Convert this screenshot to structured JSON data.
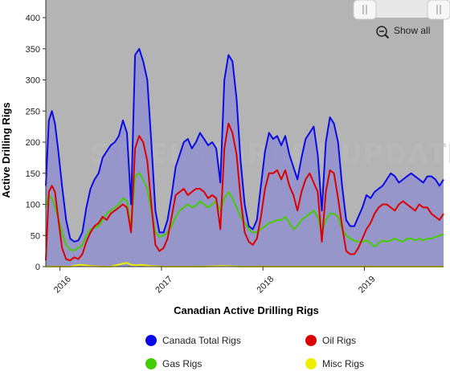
{
  "chart_data": {
    "type": "line",
    "title": "",
    "xlabel": "Canadian Active Drilling Rigs",
    "ylabel": "Active Drilling Rigs",
    "ylim": [
      0,
      400
    ],
    "yticks": [
      0,
      50,
      100,
      150,
      200,
      250,
      300,
      350,
      400
    ],
    "xlim": [
      2015.86,
      2019.78
    ],
    "xtick_labels": [
      "2016",
      "2017",
      "2018",
      "2019"
    ],
    "xtick_values": [
      2016,
      2017,
      2018,
      2019
    ],
    "grid": false,
    "legend_position": "bottom",
    "watermark": "STEEL MARKET UPDATE",
    "show_all_label": "Show all",
    "series": [
      {
        "name": "Canada Total Rigs",
        "color": "#0a0ae6",
        "fill": "#8c8cd2",
        "x": [
          2015.86,
          2015.89,
          2015.92,
          2015.95,
          2015.98,
          2016.02,
          2016.06,
          2016.1,
          2016.14,
          2016.18,
          2016.22,
          2016.26,
          2016.3,
          2016.34,
          2016.38,
          2016.42,
          2016.46,
          2016.5,
          2016.54,
          2016.58,
          2016.62,
          2016.66,
          2016.7,
          2016.74,
          2016.78,
          2016.82,
          2016.86,
          2016.9,
          2016.94,
          2016.98,
          2017.02,
          2017.06,
          2017.1,
          2017.14,
          2017.18,
          2017.22,
          2017.26,
          2017.3,
          2017.34,
          2017.38,
          2017.42,
          2017.46,
          2017.5,
          2017.54,
          2017.58,
          2017.62,
          2017.66,
          2017.7,
          2017.74,
          2017.78,
          2017.82,
          2017.86,
          2017.9,
          2017.94,
          2017.98,
          2018.02,
          2018.06,
          2018.1,
          2018.14,
          2018.18,
          2018.22,
          2018.26,
          2018.3,
          2018.34,
          2018.38,
          2018.42,
          2018.46,
          2018.5,
          2018.54,
          2018.58,
          2018.62,
          2018.66,
          2018.7,
          2018.74,
          2018.78,
          2018.82,
          2018.86,
          2018.9,
          2018.94,
          2018.98,
          2019.02,
          2019.06,
          2019.1,
          2019.14,
          2019.18,
          2019.22,
          2019.26,
          2019.3,
          2019.34,
          2019.38,
          2019.42,
          2019.46,
          2019.5,
          2019.54,
          2019.58,
          2019.62,
          2019.66,
          2019.7,
          2019.74,
          2019.78
        ],
        "values": [
          130,
          235,
          250,
          230,
          190,
          130,
          75,
          45,
          40,
          42,
          55,
          95,
          125,
          140,
          150,
          175,
          185,
          195,
          200,
          210,
          235,
          215,
          100,
          340,
          350,
          330,
          300,
          200,
          90,
          55,
          55,
          75,
          115,
          160,
          180,
          200,
          205,
          190,
          200,
          215,
          205,
          195,
          200,
          190,
          135,
          300,
          340,
          330,
          270,
          170,
          100,
          65,
          60,
          75,
          130,
          185,
          215,
          205,
          210,
          195,
          210,
          180,
          160,
          140,
          175,
          205,
          215,
          225,
          180,
          90,
          200,
          240,
          230,
          200,
          130,
          75,
          65,
          65,
          80,
          95,
          115,
          110,
          120,
          125,
          130,
          140,
          150,
          145,
          135,
          140,
          145,
          150,
          145,
          140,
          135,
          145,
          145,
          140,
          130,
          140
        ]
      },
      {
        "name": "Oil Rigs",
        "color": "#dd0000",
        "x": [
          2015.86,
          2015.89,
          2015.92,
          2015.95,
          2015.98,
          2016.02,
          2016.06,
          2016.1,
          2016.14,
          2016.18,
          2016.22,
          2016.26,
          2016.3,
          2016.34,
          2016.38,
          2016.42,
          2016.46,
          2016.5,
          2016.54,
          2016.58,
          2016.62,
          2016.66,
          2016.7,
          2016.74,
          2016.78,
          2016.82,
          2016.86,
          2016.9,
          2016.94,
          2016.98,
          2017.02,
          2017.06,
          2017.1,
          2017.14,
          2017.18,
          2017.22,
          2017.26,
          2017.3,
          2017.34,
          2017.38,
          2017.42,
          2017.46,
          2017.5,
          2017.54,
          2017.58,
          2017.62,
          2017.66,
          2017.7,
          2017.74,
          2017.78,
          2017.82,
          2017.86,
          2017.9,
          2017.94,
          2017.98,
          2018.02,
          2018.06,
          2018.1,
          2018.14,
          2018.18,
          2018.22,
          2018.26,
          2018.3,
          2018.34,
          2018.38,
          2018.42,
          2018.46,
          2018.5,
          2018.54,
          2018.58,
          2018.62,
          2018.66,
          2018.7,
          2018.74,
          2018.78,
          2018.82,
          2018.86,
          2018.9,
          2018.94,
          2018.98,
          2019.02,
          2019.06,
          2019.1,
          2019.14,
          2019.18,
          2019.22,
          2019.26,
          2019.3,
          2019.34,
          2019.38,
          2019.42,
          2019.46,
          2019.5,
          2019.54,
          2019.58,
          2019.62,
          2019.66,
          2019.7,
          2019.74,
          2019.78
        ],
        "values": [
          10,
          120,
          130,
          120,
          80,
          30,
          12,
          10,
          15,
          12,
          20,
          40,
          55,
          65,
          70,
          80,
          75,
          85,
          90,
          95,
          100,
          95,
          55,
          190,
          210,
          200,
          170,
          100,
          35,
          25,
          30,
          45,
          80,
          115,
          120,
          125,
          115,
          120,
          125,
          125,
          120,
          110,
          115,
          110,
          60,
          190,
          230,
          215,
          180,
          110,
          55,
          40,
          35,
          45,
          80,
          125,
          150,
          150,
          155,
          140,
          155,
          130,
          115,
          90,
          120,
          140,
          150,
          135,
          120,
          40,
          120,
          155,
          150,
          110,
          65,
          25,
          20,
          20,
          30,
          45,
          60,
          70,
          85,
          95,
          100,
          100,
          95,
          90,
          100,
          105,
          100,
          95,
          90,
          100,
          95,
          95,
          85,
          80,
          75,
          85
        ]
      },
      {
        "name": "Gas Rigs",
        "color": "#44cc00",
        "x": [
          2015.86,
          2015.89,
          2015.92,
          2015.95,
          2015.98,
          2016.02,
          2016.06,
          2016.1,
          2016.14,
          2016.18,
          2016.22,
          2016.26,
          2016.3,
          2016.34,
          2016.38,
          2016.42,
          2016.46,
          2016.5,
          2016.54,
          2016.58,
          2016.62,
          2016.66,
          2016.7,
          2016.74,
          2016.78,
          2016.82,
          2016.86,
          2016.9,
          2016.94,
          2016.98,
          2017.02,
          2017.06,
          2017.1,
          2017.14,
          2017.18,
          2017.22,
          2017.26,
          2017.3,
          2017.34,
          2017.38,
          2017.42,
          2017.46,
          2017.5,
          2017.54,
          2017.58,
          2017.62,
          2017.66,
          2017.7,
          2017.74,
          2017.78,
          2017.82,
          2017.86,
          2017.9,
          2017.94,
          2017.98,
          2018.02,
          2018.06,
          2018.1,
          2018.14,
          2018.18,
          2018.22,
          2018.26,
          2018.3,
          2018.34,
          2018.38,
          2018.42,
          2018.46,
          2018.5,
          2018.54,
          2018.58,
          2018.62,
          2018.66,
          2018.7,
          2018.74,
          2018.78,
          2018.82,
          2018.86,
          2018.9,
          2018.94,
          2018.98,
          2019.02,
          2019.06,
          2019.1,
          2019.14,
          2019.18,
          2019.22,
          2019.26,
          2019.3,
          2019.34,
          2019.38,
          2019.42,
          2019.46,
          2019.5,
          2019.54,
          2019.58,
          2019.62,
          2019.66,
          2019.7,
          2019.74,
          2019.78
        ],
        "values": [
          95,
          115,
          110,
          95,
          80,
          55,
          35,
          27,
          26,
          30,
          35,
          50,
          60,
          62,
          65,
          75,
          85,
          90,
          95,
          100,
          110,
          105,
          60,
          145,
          150,
          140,
          125,
          90,
          55,
          48,
          50,
          55,
          65,
          80,
          90,
          95,
          100,
          95,
          98,
          105,
          100,
          95,
          100,
          105,
          90,
          110,
          120,
          110,
          95,
          80,
          70,
          60,
          55,
          55,
          60,
          65,
          70,
          72,
          75,
          75,
          80,
          70,
          60,
          65,
          75,
          80,
          85,
          90,
          80,
          55,
          75,
          85,
          85,
          80,
          60,
          50,
          45,
          42,
          40,
          40,
          42,
          38,
          32,
          38,
          42,
          40,
          42,
          45,
          42,
          40,
          45,
          45,
          42,
          45,
          42,
          45,
          45,
          48,
          50,
          52
        ]
      },
      {
        "name": "Misc Rigs",
        "color": "#eeee00",
        "x": [
          2015.86,
          2016.1,
          2016.16,
          2016.2,
          2016.25,
          2016.3,
          2016.4,
          2016.5,
          2016.55,
          2016.6,
          2016.62,
          2016.66,
          2016.7,
          2016.75,
          2016.8,
          2016.9,
          2017.0,
          2017.4,
          2017.6,
          2017.8,
          2018.0,
          2018.4,
          2018.8,
          2019.2,
          2019.6,
          2019.78
        ],
        "values": [
          0,
          0,
          2,
          3,
          2,
          1,
          0,
          0,
          2,
          4,
          5,
          6,
          3,
          2,
          3,
          1,
          0,
          0,
          1,
          0,
          0,
          0,
          0,
          0,
          0,
          0
        ]
      }
    ]
  }
}
